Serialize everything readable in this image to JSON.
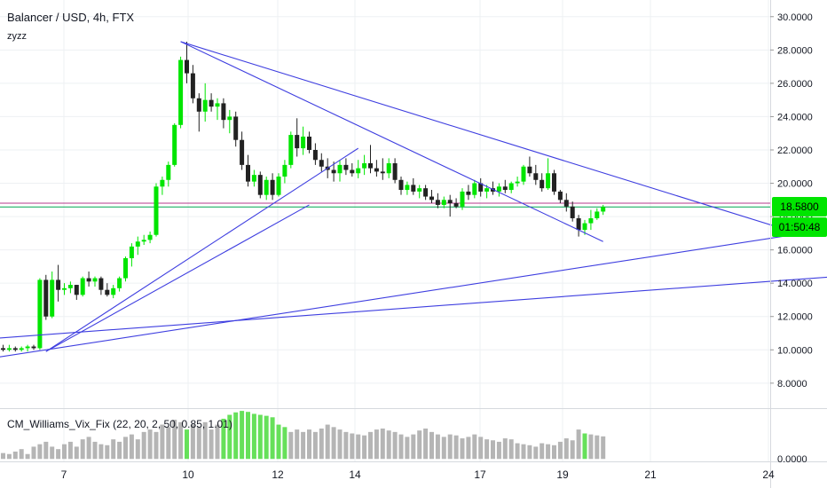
{
  "header": {
    "title": "Balancer / USD, 4h, FTX",
    "subtitle": "zyzz"
  },
  "indicator": {
    "label": "CM_Williams_Vix_Fix (22, 20, 2, 50, 0.85, 1.01)"
  },
  "price_tags": {
    "last_price": "18.5800",
    "countdown": "01:50:48"
  },
  "colors": {
    "up": "#00e500",
    "down": "#222222",
    "trendline": "#3f3fe0",
    "vix_bar": "#b5b5b5",
    "vix_high": "#66e05a",
    "hline_a": "#b4398c",
    "hline_b": "#00a651"
  },
  "chart_data": {
    "type": "candlestick",
    "title": "Balancer / USD, 4h, FTX",
    "x_ticks": [
      "7",
      "10",
      "12",
      "14",
      "17",
      "19",
      "21",
      "24"
    ],
    "y_ticks": [
      "8.0000",
      "10.0000",
      "12.0000",
      "14.0000",
      "16.0000",
      "18.0000",
      "20.0000",
      "22.0000",
      "24.0000",
      "26.0000",
      "28.0000",
      "30.0000"
    ],
    "ylim": [
      6.5,
      31
    ],
    "horizontal_lines": [
      18.8,
      18.58
    ],
    "candles": [
      [
        10.1,
        10.3,
        9.9,
        10.0
      ],
      [
        10.0,
        10.3,
        9.9,
        10.1
      ],
      [
        10.1,
        10.2,
        9.9,
        10.0
      ],
      [
        10.0,
        10.2,
        9.9,
        10.1
      ],
      [
        10.1,
        10.3,
        9.9,
        10.2
      ],
      [
        10.2,
        10.3,
        10.0,
        10.1
      ],
      [
        10.1,
        14.3,
        10.0,
        14.2
      ],
      [
        14.2,
        14.5,
        11.8,
        12.0
      ],
      [
        12.0,
        14.7,
        11.9,
        14.2
      ],
      [
        14.2,
        15.1,
        12.9,
        13.6
      ],
      [
        13.6,
        14.0,
        13.3,
        13.7
      ],
      [
        13.7,
        14.1,
        13.4,
        13.9
      ],
      [
        13.9,
        13.9,
        13.0,
        13.3
      ],
      [
        13.3,
        14.4,
        13.2,
        14.3
      ],
      [
        14.3,
        14.7,
        13.8,
        14.1
      ],
      [
        14.1,
        14.4,
        13.8,
        14.3
      ],
      [
        14.3,
        14.4,
        13.3,
        13.6
      ],
      [
        13.6,
        14.0,
        13.2,
        13.3
      ],
      [
        13.3,
        13.9,
        13.1,
        13.7
      ],
      [
        13.7,
        14.4,
        13.5,
        14.3
      ],
      [
        14.3,
        15.6,
        14.1,
        15.5
      ],
      [
        15.5,
        16.4,
        15.0,
        16.2
      ],
      [
        16.2,
        16.8,
        15.7,
        16.5
      ],
      [
        16.5,
        16.9,
        16.3,
        16.6
      ],
      [
        16.6,
        17.1,
        16.4,
        16.9
      ],
      [
        16.9,
        20.0,
        16.8,
        19.8
      ],
      [
        19.8,
        20.4,
        19.3,
        20.2
      ],
      [
        20.2,
        21.3,
        19.8,
        21.1
      ],
      [
        21.1,
        23.6,
        21.0,
        23.5
      ],
      [
        23.5,
        27.6,
        23.3,
        27.4
      ],
      [
        27.4,
        28.5,
        26.0,
        26.6
      ],
      [
        26.6,
        27.1,
        24.8,
        25.1
      ],
      [
        25.1,
        25.4,
        23.1,
        24.3
      ],
      [
        24.3,
        26.0,
        23.7,
        25.0
      ],
      [
        25.0,
        25.4,
        24.3,
        24.6
      ],
      [
        24.6,
        25.1,
        23.8,
        24.8
      ],
      [
        24.8,
        25.1,
        23.3,
        23.8
      ],
      [
        23.8,
        24.4,
        23.0,
        24.0
      ],
      [
        24.0,
        24.3,
        22.2,
        22.6
      ],
      [
        22.6,
        23.1,
        20.8,
        21.1
      ],
      [
        21.1,
        21.7,
        19.8,
        20.1
      ],
      [
        20.1,
        20.8,
        19.8,
        20.5
      ],
      [
        20.5,
        20.7,
        19.1,
        19.3
      ],
      [
        19.3,
        20.4,
        19.0,
        20.2
      ],
      [
        20.2,
        20.6,
        19.0,
        19.3
      ],
      [
        19.3,
        20.6,
        19.2,
        20.4
      ],
      [
        20.4,
        21.4,
        20.0,
        21.1
      ],
      [
        21.1,
        23.1,
        20.9,
        22.9
      ],
      [
        22.9,
        23.9,
        21.6,
        22.1
      ],
      [
        22.1,
        23.4,
        21.7,
        22.8
      ],
      [
        22.8,
        23.1,
        21.8,
        22.0
      ],
      [
        22.0,
        22.4,
        21.1,
        21.4
      ],
      [
        21.4,
        21.8,
        20.7,
        21.0
      ],
      [
        21.0,
        21.5,
        20.3,
        20.8
      ],
      [
        20.8,
        21.3,
        20.1,
        20.6
      ],
      [
        20.6,
        21.4,
        20.1,
        21.1
      ],
      [
        21.1,
        21.5,
        20.5,
        20.8
      ],
      [
        20.8,
        21.2,
        20.4,
        20.6
      ],
      [
        20.6,
        21.4,
        20.3,
        20.9
      ],
      [
        20.9,
        21.7,
        20.5,
        21.2
      ],
      [
        21.2,
        22.3,
        20.6,
        20.9
      ],
      [
        20.9,
        21.4,
        20.4,
        20.7
      ],
      [
        20.7,
        21.5,
        20.2,
        20.6
      ],
      [
        20.6,
        21.5,
        20.3,
        21.2
      ],
      [
        21.2,
        21.5,
        20.0,
        20.2
      ],
      [
        20.2,
        20.4,
        19.3,
        19.6
      ],
      [
        19.6,
        20.1,
        19.3,
        19.9
      ],
      [
        19.9,
        20.3,
        19.3,
        19.5
      ],
      [
        19.5,
        19.9,
        19.1,
        19.7
      ],
      [
        19.7,
        19.9,
        19.0,
        19.2
      ],
      [
        19.2,
        19.6,
        18.8,
        19.0
      ],
      [
        19.0,
        19.4,
        18.5,
        18.7
      ],
      [
        18.7,
        19.2,
        18.5,
        19.0
      ],
      [
        19.0,
        19.3,
        18.0,
        18.8
      ],
      [
        18.8,
        19.1,
        18.5,
        18.6
      ],
      [
        18.6,
        19.7,
        18.4,
        19.5
      ],
      [
        19.5,
        19.9,
        19.0,
        19.3
      ],
      [
        19.3,
        20.2,
        19.1,
        20.0
      ],
      [
        20.0,
        20.3,
        19.2,
        19.5
      ],
      [
        19.5,
        19.9,
        19.1,
        19.7
      ],
      [
        19.7,
        20.1,
        19.3,
        19.5
      ],
      [
        19.5,
        20.0,
        19.2,
        19.8
      ],
      [
        19.8,
        20.2,
        19.4,
        19.6
      ],
      [
        19.6,
        20.1,
        19.4,
        20.0
      ],
      [
        20.0,
        20.4,
        19.8,
        20.1
      ],
      [
        20.1,
        21.1,
        19.9,
        21.0
      ],
      [
        21.0,
        21.6,
        20.4,
        20.6
      ],
      [
        20.6,
        21.1,
        19.9,
        20.2
      ],
      [
        20.2,
        20.6,
        19.5,
        19.7
      ],
      [
        19.7,
        21.5,
        19.6,
        20.6
      ],
      [
        20.6,
        20.8,
        19.3,
        19.5
      ],
      [
        19.5,
        19.6,
        18.8,
        19.0
      ],
      [
        19.0,
        19.4,
        18.3,
        18.6
      ],
      [
        18.6,
        18.9,
        17.7,
        17.9
      ],
      [
        17.9,
        18.1,
        16.8,
        17.2
      ],
      [
        17.2,
        17.8,
        16.9,
        17.6
      ],
      [
        17.6,
        18.4,
        17.2,
        17.9
      ],
      [
        17.9,
        18.5,
        17.8,
        18.3
      ],
      [
        18.3,
        18.7,
        18.1,
        18.58
      ]
    ],
    "trendlines": [
      {
        "from": [
          -1,
          9.55
        ],
        "to": [
          136,
          17.3
        ]
      },
      {
        "from": [
          -1,
          10.7
        ],
        "to": [
          136,
          14.4
        ]
      },
      {
        "from": [
          7,
          9.9
        ],
        "to": [
          58,
          22.1
        ]
      },
      {
        "from": [
          29,
          28.5
        ],
        "to": [
          128,
          17.2
        ]
      },
      {
        "from": [
          29,
          28.5
        ],
        "to": [
          98,
          16.5
        ]
      },
      {
        "from": [
          7,
          9.9
        ],
        "to": [
          50,
          18.7
        ]
      }
    ],
    "vix_fix": {
      "ylim": [
        -0.05,
        1.0
      ],
      "y_ticks": [
        "0.0000"
      ],
      "values": [
        0.12,
        0.1,
        0.15,
        0.2,
        0.1,
        0.25,
        0.3,
        0.35,
        0.25,
        0.2,
        0.3,
        0.35,
        0.25,
        0.4,
        0.45,
        0.35,
        0.3,
        0.28,
        0.4,
        0.35,
        0.45,
        0.5,
        0.4,
        0.55,
        0.6,
        0.55,
        0.7,
        0.65,
        0.8,
        0.75,
        0.6,
        0.7,
        0.65,
        0.75,
        0.6,
        0.7,
        0.82,
        0.9,
        0.95,
        0.98,
        0.96,
        0.92,
        0.9,
        0.88,
        0.85,
        0.7,
        0.65,
        0.55,
        0.6,
        0.55,
        0.6,
        0.55,
        0.62,
        0.7,
        0.65,
        0.6,
        0.55,
        0.52,
        0.5,
        0.48,
        0.55,
        0.6,
        0.62,
        0.58,
        0.55,
        0.5,
        0.45,
        0.5,
        0.58,
        0.62,
        0.55,
        0.5,
        0.45,
        0.5,
        0.48,
        0.42,
        0.45,
        0.5,
        0.45,
        0.4,
        0.38,
        0.35,
        0.42,
        0.4,
        0.32,
        0.3,
        0.28,
        0.25,
        0.32,
        0.3,
        0.28,
        0.35,
        0.42,
        0.38,
        0.6,
        0.52,
        0.5,
        0.48,
        0.46
      ],
      "highlighted": [
        30,
        36,
        37,
        38,
        39,
        40,
        41,
        42,
        43,
        44,
        45,
        46,
        95
      ]
    }
  }
}
